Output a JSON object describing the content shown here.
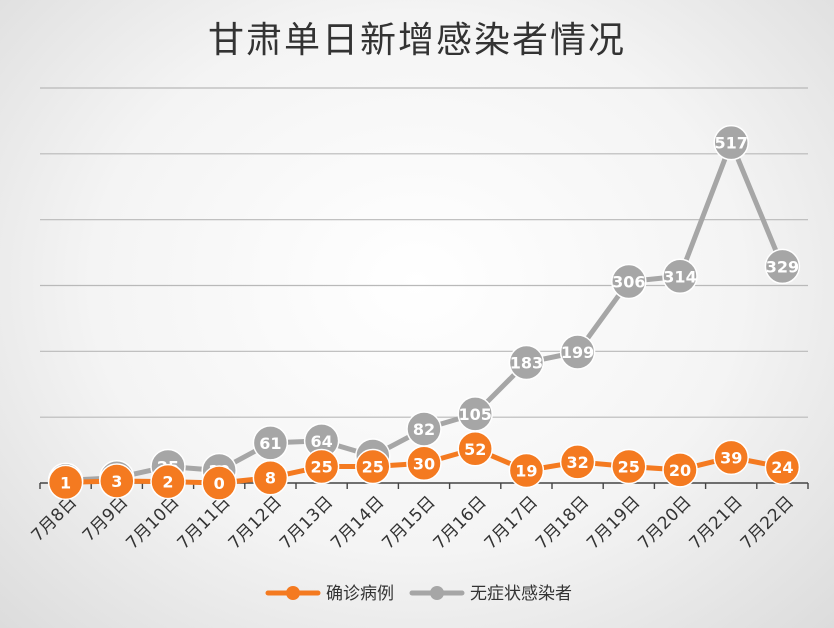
{
  "chart_data": {
    "type": "line",
    "title": "甘肃单日新增感染者情况",
    "categories": [
      "7月8日",
      "7月9日",
      "7月10日",
      "7月11日",
      "7月12日",
      "7月13日",
      "7月14日",
      "7月15日",
      "7月16日",
      "7月17日",
      "7月18日",
      "7月19日",
      "7月20日",
      "7月21日",
      "7月22日"
    ],
    "series": [
      {
        "name": "确诊病例",
        "color": "#f47a20",
        "values": [
          1,
          3,
          2,
          0,
          8,
          25,
          25,
          30,
          52,
          19,
          32,
          25,
          20,
          39,
          24
        ]
      },
      {
        "name": "无症状感染者",
        "color": "#a6a6a6",
        "values": [
          4,
          8,
          25,
          19,
          61,
          64,
          41,
          82,
          105,
          183,
          199,
          306,
          314,
          517,
          329
        ]
      }
    ],
    "ylim": [
      0,
      600
    ],
    "grid": true,
    "legend_position": "bottom"
  }
}
